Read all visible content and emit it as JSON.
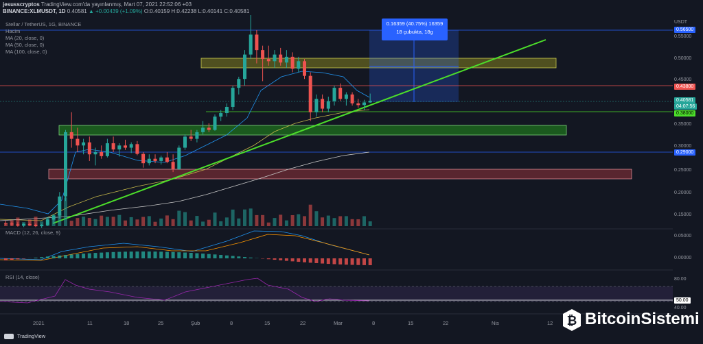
{
  "header": {
    "user": "jesusscryptos",
    "published": "TradingView.com'da yayınlanmış, Mart 07, 2021 22:52:06 +03",
    "symbol": "BINANCE:XLMUSDT, 1D",
    "price": "0.40581",
    "change": "▲ +0.00439 (+1.09%)",
    "ohlc": "O:0.40159 H:0.42238 L:0.40141 C:0.40581"
  },
  "legend": {
    "title": "Stellar / TetherUS, 1G, BINANCE",
    "volume": "Hacim",
    "ma20": "MA (20, close, 0)",
    "ma50": "MA (50, close, 0)",
    "ma100": "MA (100, close, 0)"
  },
  "macd_label": "MACD (12, 26, close, 9)",
  "rsi_label": "RSI (14, close)",
  "price_axis": {
    "currency": "USDT",
    "ticks": [
      "0.55000",
      "0.50000",
      "0.45000",
      "0.35000",
      "0.30000",
      "0.25000",
      "0.20000",
      "0.15000"
    ],
    "tags": {
      "top": "0.56500",
      "red": "0.43800",
      "last": "0.40581",
      "countdown": "04:07:56",
      "green": "0.38000",
      "blue": "0.29000"
    }
  },
  "macd_axis": [
    "0.05000",
    "0.00000"
  ],
  "rsi_axis": [
    "80.00",
    "50.00",
    "40.00"
  ],
  "time_axis": [
    "2021",
    "11",
    "18",
    "25",
    "Şub",
    "8",
    "15",
    "22",
    "Mar",
    "8",
    "15",
    "22",
    "Nis",
    "12"
  ],
  "measure_tool": {
    "line1": "0.16359 (40.75%) 16359",
    "line2": "18 çubukta, 18g"
  },
  "footer": {
    "brand": "TradingView"
  },
  "watermark": {
    "text": "BitcoinSistemi"
  },
  "colors": {
    "up": "#26a69a",
    "down": "#ef5350",
    "trendline": "#4cde2a",
    "accent": "#2962ff"
  },
  "chart_data": {
    "type": "candlestick",
    "symbol": "XLMUSDT",
    "candles": [
      [
        0.13,
        0.135,
        0.125,
        0.129
      ],
      [
        0.129,
        0.133,
        0.124,
        0.127
      ],
      [
        0.127,
        0.132,
        0.122,
        0.125
      ],
      [
        0.125,
        0.13,
        0.121,
        0.128
      ],
      [
        0.128,
        0.131,
        0.124,
        0.126
      ],
      [
        0.126,
        0.129,
        0.121,
        0.123
      ],
      [
        0.123,
        0.128,
        0.119,
        0.126
      ],
      [
        0.126,
        0.14,
        0.124,
        0.138
      ],
      [
        0.138,
        0.15,
        0.132,
        0.147
      ],
      [
        0.147,
        0.2,
        0.14,
        0.19
      ],
      [
        0.19,
        0.34,
        0.18,
        0.335
      ],
      [
        0.335,
        0.38,
        0.3,
        0.32
      ],
      [
        0.32,
        0.345,
        0.29,
        0.305
      ],
      [
        0.305,
        0.32,
        0.285,
        0.312
      ],
      [
        0.312,
        0.325,
        0.27,
        0.285
      ],
      [
        0.285,
        0.3,
        0.26,
        0.29
      ],
      [
        0.29,
        0.305,
        0.275,
        0.281
      ],
      [
        0.281,
        0.32,
        0.278,
        0.31
      ],
      [
        0.31,
        0.325,
        0.29,
        0.296
      ],
      [
        0.296,
        0.31,
        0.28,
        0.305
      ],
      [
        0.305,
        0.318,
        0.295,
        0.3
      ],
      [
        0.3,
        0.312,
        0.288,
        0.308
      ],
      [
        0.308,
        0.315,
        0.283,
        0.286
      ],
      [
        0.286,
        0.29,
        0.255,
        0.265
      ],
      [
        0.265,
        0.285,
        0.26,
        0.275
      ],
      [
        0.275,
        0.285,
        0.265,
        0.27
      ],
      [
        0.27,
        0.282,
        0.262,
        0.278
      ],
      [
        0.278,
        0.29,
        0.265,
        0.268
      ],
      [
        0.268,
        0.285,
        0.245,
        0.252
      ],
      [
        0.252,
        0.305,
        0.25,
        0.3
      ],
      [
        0.3,
        0.33,
        0.295,
        0.325
      ],
      [
        0.325,
        0.34,
        0.315,
        0.32
      ],
      [
        0.32,
        0.34,
        0.312,
        0.335
      ],
      [
        0.335,
        0.36,
        0.33,
        0.345
      ],
      [
        0.345,
        0.355,
        0.335,
        0.34
      ],
      [
        0.34,
        0.375,
        0.338,
        0.37
      ],
      [
        0.37,
        0.385,
        0.36,
        0.378
      ],
      [
        0.378,
        0.4,
        0.37,
        0.392
      ],
      [
        0.392,
        0.44,
        0.385,
        0.435
      ],
      [
        0.435,
        0.46,
        0.42,
        0.455
      ],
      [
        0.455,
        0.52,
        0.44,
        0.51
      ],
      [
        0.51,
        0.6,
        0.5,
        0.555
      ],
      [
        0.555,
        0.565,
        0.49,
        0.52
      ],
      [
        0.52,
        0.53,
        0.45,
        0.5
      ],
      [
        0.5,
        0.53,
        0.485,
        0.495
      ],
      [
        0.495,
        0.52,
        0.48,
        0.51
      ],
      [
        0.51,
        0.525,
        0.485,
        0.492
      ],
      [
        0.492,
        0.52,
        0.48,
        0.505
      ],
      [
        0.505,
        0.515,
        0.47,
        0.478
      ],
      [
        0.478,
        0.505,
        0.47,
        0.495
      ],
      [
        0.495,
        0.5,
        0.455,
        0.462
      ],
      [
        0.462,
        0.47,
        0.36,
        0.38
      ],
      [
        0.38,
        0.42,
        0.37,
        0.41
      ],
      [
        0.41,
        0.42,
        0.38,
        0.388
      ],
      [
        0.388,
        0.415,
        0.38,
        0.405
      ],
      [
        0.405,
        0.44,
        0.395,
        0.435
      ],
      [
        0.435,
        0.445,
        0.405,
        0.41
      ],
      [
        0.41,
        0.425,
        0.395,
        0.42
      ],
      [
        0.42,
        0.425,
        0.395,
        0.4
      ],
      [
        0.4,
        0.41,
        0.39,
        0.396
      ],
      [
        0.396,
        0.408,
        0.385,
        0.402
      ],
      [
        0.402,
        0.422,
        0.401,
        0.4058
      ]
    ],
    "levels": [
      0.565,
      0.438,
      0.38,
      0.29
    ]
  }
}
